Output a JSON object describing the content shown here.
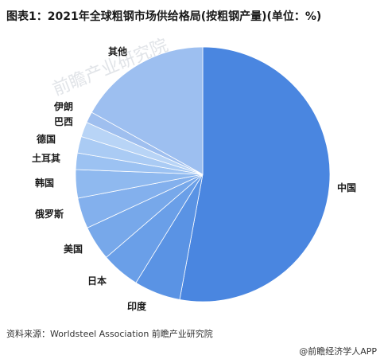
{
  "header": {
    "title": "图表1：2021年全球粗钢市场供给格局(按粗钢产量)(单位：%)"
  },
  "chart_data": {
    "type": "pie",
    "title": "图表1：2021年全球粗钢市场供给格局(按粗钢产量)(单位：%)",
    "unit": "%",
    "slices": [
      {
        "label": "中国",
        "value": 52.9,
        "color": "#4a86e0"
      },
      {
        "label": "印度",
        "value": 5.9,
        "color": "#5a93e4"
      },
      {
        "label": "日本",
        "value": 4.9,
        "color": "#6a9fe8"
      },
      {
        "label": "美国",
        "value": 4.4,
        "color": "#77a8ea"
      },
      {
        "label": "俄罗斯",
        "value": 3.9,
        "color": "#83b0ed"
      },
      {
        "label": "韩国",
        "value": 3.6,
        "color": "#8fb9ef"
      },
      {
        "label": "土耳其",
        "value": 2.1,
        "color": "#9cc2f2"
      },
      {
        "label": "德国",
        "value": 2.1,
        "color": "#aacbf4"
      },
      {
        "label": "巴西",
        "value": 1.9,
        "color": "#b8d4f6"
      },
      {
        "label": "伊朗",
        "value": 1.4,
        "color": "#9fbfef"
      },
      {
        "label": "其他",
        "value": 16.9,
        "color": "#9dbff0"
      }
    ]
  },
  "watermark": {
    "brand": "前瞻产业研究院"
  },
  "footer": {
    "source": "资料来源：Worldsteel Association 前瞻产业研究院",
    "app": "@前瞻经济学人APP"
  }
}
